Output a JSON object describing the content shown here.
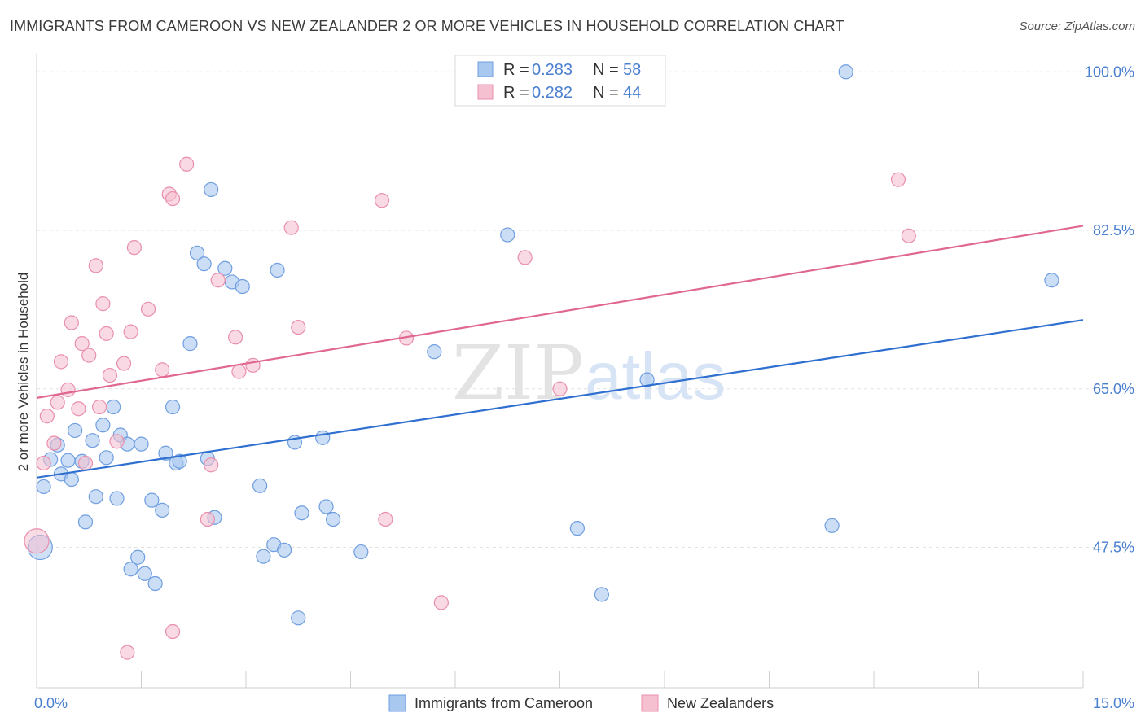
{
  "title": "IMMIGRANTS FROM CAMEROON VS NEW ZEALANDER 2 OR MORE VEHICLES IN HOUSEHOLD CORRELATION CHART",
  "source": "Source: ZipAtlas.com",
  "watermark": {
    "zip": "ZIP",
    "atlas": "atlas"
  },
  "colors": {
    "blue_fill": "#a9c8ef",
    "blue_stroke": "#6f9ee0",
    "blue_line": "#2f6fcf",
    "pink_fill": "#f5c0d0",
    "pink_stroke": "#e98fac",
    "pink_line": "#e06890",
    "accent_text": "#4a7fd0"
  },
  "chart_data": {
    "type": "scatter",
    "title": "IMMIGRANTS FROM CAMEROON VS NEW ZEALANDER 2 OR MORE VEHICLES IN HOUSEHOLD CORRELATION CHART",
    "xlabel": "",
    "ylabel": "2 or more Vehicles in Household",
    "xlim": [
      0,
      15
    ],
    "ylim": [
      32,
      102
    ],
    "x_tick_labels": [
      "0.0%",
      "15.0%"
    ],
    "y_ticks": [
      47.5,
      65.0,
      82.5,
      100.0
    ],
    "y_tick_labels": [
      "47.5%",
      "65.0%",
      "82.5%",
      "100.0%"
    ],
    "grid": true,
    "legend_position": "top-center",
    "legend": {
      "r_label": "R =",
      "n_label": "N =",
      "entries": [
        {
          "r": "0.283",
          "n": "58"
        },
        {
          "r": "0.282",
          "n": "44"
        }
      ]
    },
    "series": [
      {
        "name": "Immigrants from Cameroon",
        "trend": {
          "x": [
            0,
            15
          ],
          "y": [
            55.2,
            72.6
          ]
        },
        "points": [
          {
            "x": 0.05,
            "y": 47.5,
            "big": true
          },
          {
            "x": 0.1,
            "y": 54.2
          },
          {
            "x": 0.2,
            "y": 57.2
          },
          {
            "x": 0.3,
            "y": 58.8
          },
          {
            "x": 0.35,
            "y": 55.6
          },
          {
            "x": 0.45,
            "y": 57.1
          },
          {
            "x": 0.5,
            "y": 55.0
          },
          {
            "x": 0.55,
            "y": 60.4
          },
          {
            "x": 0.65,
            "y": 57.0
          },
          {
            "x": 0.7,
            "y": 50.3
          },
          {
            "x": 0.8,
            "y": 59.3
          },
          {
            "x": 0.85,
            "y": 53.1
          },
          {
            "x": 0.95,
            "y": 61.0
          },
          {
            "x": 1.0,
            "y": 57.4
          },
          {
            "x": 1.1,
            "y": 63.0
          },
          {
            "x": 1.15,
            "y": 52.9
          },
          {
            "x": 1.2,
            "y": 59.9
          },
          {
            "x": 1.3,
            "y": 58.9
          },
          {
            "x": 1.35,
            "y": 45.1
          },
          {
            "x": 1.45,
            "y": 46.4
          },
          {
            "x": 1.5,
            "y": 58.9
          },
          {
            "x": 1.55,
            "y": 44.6
          },
          {
            "x": 1.65,
            "y": 52.7
          },
          {
            "x": 1.7,
            "y": 43.5
          },
          {
            "x": 1.8,
            "y": 51.6
          },
          {
            "x": 1.85,
            "y": 57.9
          },
          {
            "x": 1.95,
            "y": 63.0
          },
          {
            "x": 2.0,
            "y": 56.8
          },
          {
            "x": 2.05,
            "y": 57.0
          },
          {
            "x": 2.2,
            "y": 70.0
          },
          {
            "x": 2.3,
            "y": 80.0
          },
          {
            "x": 2.4,
            "y": 78.8
          },
          {
            "x": 2.45,
            "y": 57.3
          },
          {
            "x": 2.5,
            "y": 87.0
          },
          {
            "x": 2.55,
            "y": 50.8
          },
          {
            "x": 2.7,
            "y": 78.3
          },
          {
            "x": 2.8,
            "y": 76.8
          },
          {
            "x": 2.95,
            "y": 76.3
          },
          {
            "x": 3.2,
            "y": 54.3
          },
          {
            "x": 3.25,
            "y": 46.5
          },
          {
            "x": 3.4,
            "y": 47.8
          },
          {
            "x": 3.45,
            "y": 78.1
          },
          {
            "x": 3.55,
            "y": 47.2
          },
          {
            "x": 3.7,
            "y": 59.1
          },
          {
            "x": 3.75,
            "y": 39.7
          },
          {
            "x": 3.8,
            "y": 51.3
          },
          {
            "x": 4.1,
            "y": 59.6
          },
          {
            "x": 4.15,
            "y": 52.0
          },
          {
            "x": 4.25,
            "y": 50.6
          },
          {
            "x": 4.65,
            "y": 47.0
          },
          {
            "x": 5.7,
            "y": 69.1
          },
          {
            "x": 6.75,
            "y": 82.0
          },
          {
            "x": 7.75,
            "y": 49.6
          },
          {
            "x": 8.1,
            "y": 42.3
          },
          {
            "x": 8.75,
            "y": 66.0
          },
          {
            "x": 11.4,
            "y": 49.9
          },
          {
            "x": 11.6,
            "y": 100.0
          },
          {
            "x": 14.55,
            "y": 77.0
          }
        ]
      },
      {
        "name": "New Zealanders",
        "trend": {
          "x": [
            0,
            15
          ],
          "y": [
            64.0,
            83.0
          ]
        },
        "points": [
          {
            "x": 0.0,
            "y": 48.2,
            "big": true
          },
          {
            "x": 0.1,
            "y": 56.8
          },
          {
            "x": 0.15,
            "y": 62.0
          },
          {
            "x": 0.25,
            "y": 59.0
          },
          {
            "x": 0.3,
            "y": 63.5
          },
          {
            "x": 0.35,
            "y": 68.0
          },
          {
            "x": 0.45,
            "y": 64.9
          },
          {
            "x": 0.5,
            "y": 72.3
          },
          {
            "x": 0.6,
            "y": 62.8
          },
          {
            "x": 0.65,
            "y": 70.0
          },
          {
            "x": 0.7,
            "y": 56.8
          },
          {
            "x": 0.75,
            "y": 68.7
          },
          {
            "x": 0.85,
            "y": 78.6
          },
          {
            "x": 0.9,
            "y": 63.0
          },
          {
            "x": 0.95,
            "y": 74.4
          },
          {
            "x": 1.0,
            "y": 71.1
          },
          {
            "x": 1.05,
            "y": 66.5
          },
          {
            "x": 1.15,
            "y": 59.2
          },
          {
            "x": 1.25,
            "y": 67.8
          },
          {
            "x": 1.35,
            "y": 71.3
          },
          {
            "x": 1.4,
            "y": 80.6
          },
          {
            "x": 1.6,
            "y": 73.8
          },
          {
            "x": 1.8,
            "y": 67.1
          },
          {
            "x": 1.9,
            "y": 86.5
          },
          {
            "x": 1.95,
            "y": 86.0
          },
          {
            "x": 1.95,
            "y": 38.2
          },
          {
            "x": 2.15,
            "y": 89.8
          },
          {
            "x": 2.45,
            "y": 50.6
          },
          {
            "x": 2.5,
            "y": 56.6
          },
          {
            "x": 2.6,
            "y": 77.0
          },
          {
            "x": 2.85,
            "y": 70.7
          },
          {
            "x": 2.9,
            "y": 66.9
          },
          {
            "x": 3.1,
            "y": 67.6
          },
          {
            "x": 3.65,
            "y": 82.8
          },
          {
            "x": 3.75,
            "y": 71.8
          },
          {
            "x": 1.3,
            "y": 35.9
          },
          {
            "x": 4.95,
            "y": 85.8
          },
          {
            "x": 5.0,
            "y": 50.6
          },
          {
            "x": 5.3,
            "y": 70.6
          },
          {
            "x": 5.8,
            "y": 41.4
          },
          {
            "x": 7.0,
            "y": 79.5
          },
          {
            "x": 7.5,
            "y": 65.0
          },
          {
            "x": 12.35,
            "y": 88.1
          },
          {
            "x": 12.5,
            "y": 81.9
          }
        ]
      }
    ]
  }
}
